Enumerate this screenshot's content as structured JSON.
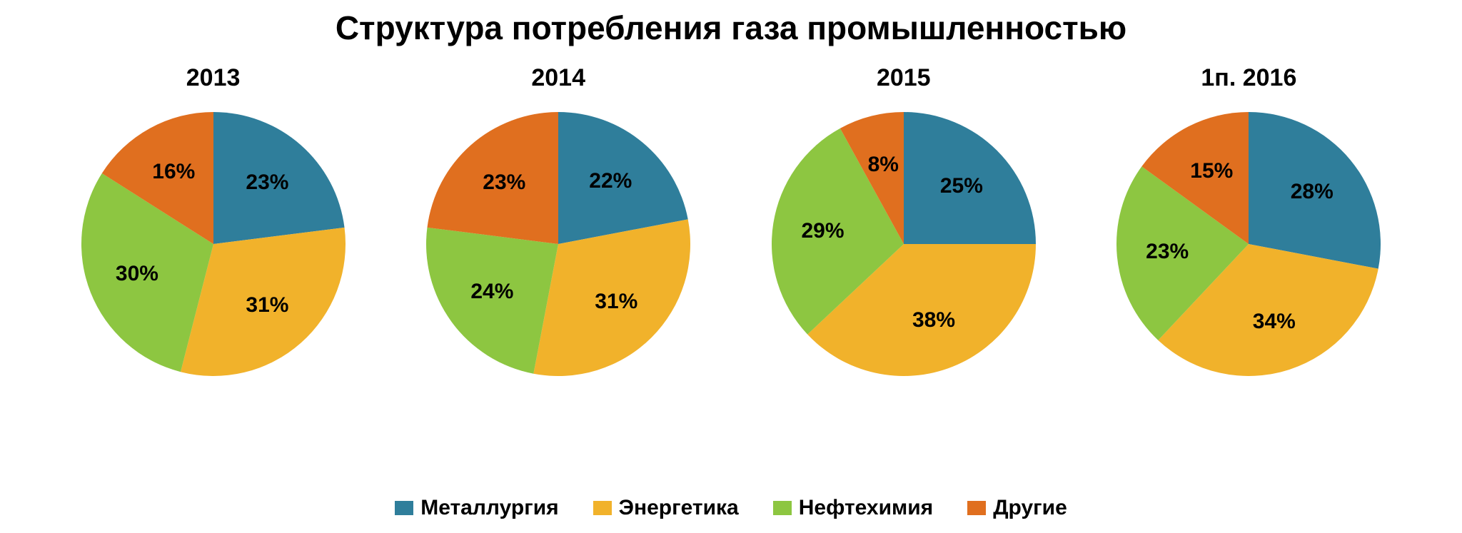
{
  "title": "Структура потребления газа промышленностью",
  "title_fontsize": 46,
  "title_color": "#000000",
  "background_color": "#ffffff",
  "pie_radius": 185,
  "pie_title_fontsize": 34,
  "label_fontsize": 30,
  "legend_fontsize": 30,
  "label_radius_factor": 0.62,
  "start_angle_deg": -90,
  "direction": "clockwise",
  "categories": [
    {
      "key": "metallurgy",
      "label": "Металлургия",
      "color": "#2f7e9b"
    },
    {
      "key": "energy",
      "label": "Энергетика",
      "color": "#f1b22b"
    },
    {
      "key": "petrochem",
      "label": "Нефтехимия",
      "color": "#8dc641"
    },
    {
      "key": "other",
      "label": "Другие",
      "color": "#e06f1f"
    }
  ],
  "charts": [
    {
      "title": "2013",
      "slices": [
        {
          "category": "metallurgy",
          "value": 23,
          "label": "23%"
        },
        {
          "category": "energy",
          "value": 31,
          "label": "31%"
        },
        {
          "category": "petrochem",
          "value": 30,
          "label": "30%"
        },
        {
          "category": "other",
          "value": 16,
          "label": "16%"
        }
      ]
    },
    {
      "title": "2014",
      "slices": [
        {
          "category": "metallurgy",
          "value": 22,
          "label": "22%"
        },
        {
          "category": "energy",
          "value": 31,
          "label": "31%"
        },
        {
          "category": "petrochem",
          "value": 24,
          "label": "24%"
        },
        {
          "category": "other",
          "value": 23,
          "label": "23%"
        }
      ]
    },
    {
      "title": "2015",
      "slices": [
        {
          "category": "metallurgy",
          "value": 25,
          "label": "25%"
        },
        {
          "category": "energy",
          "value": 38,
          "label": "38%"
        },
        {
          "category": "petrochem",
          "value": 29,
          "label": "29%"
        },
        {
          "category": "other",
          "value": 8,
          "label": "8%"
        }
      ]
    },
    {
      "title": "1п. 2016",
      "slices": [
        {
          "category": "metallurgy",
          "value": 28,
          "label": "28%"
        },
        {
          "category": "energy",
          "value": 34,
          "label": "34%"
        },
        {
          "category": "petrochem",
          "value": 23,
          "label": "23%"
        },
        {
          "category": "other",
          "value": 15,
          "label": "15%"
        }
      ]
    }
  ]
}
